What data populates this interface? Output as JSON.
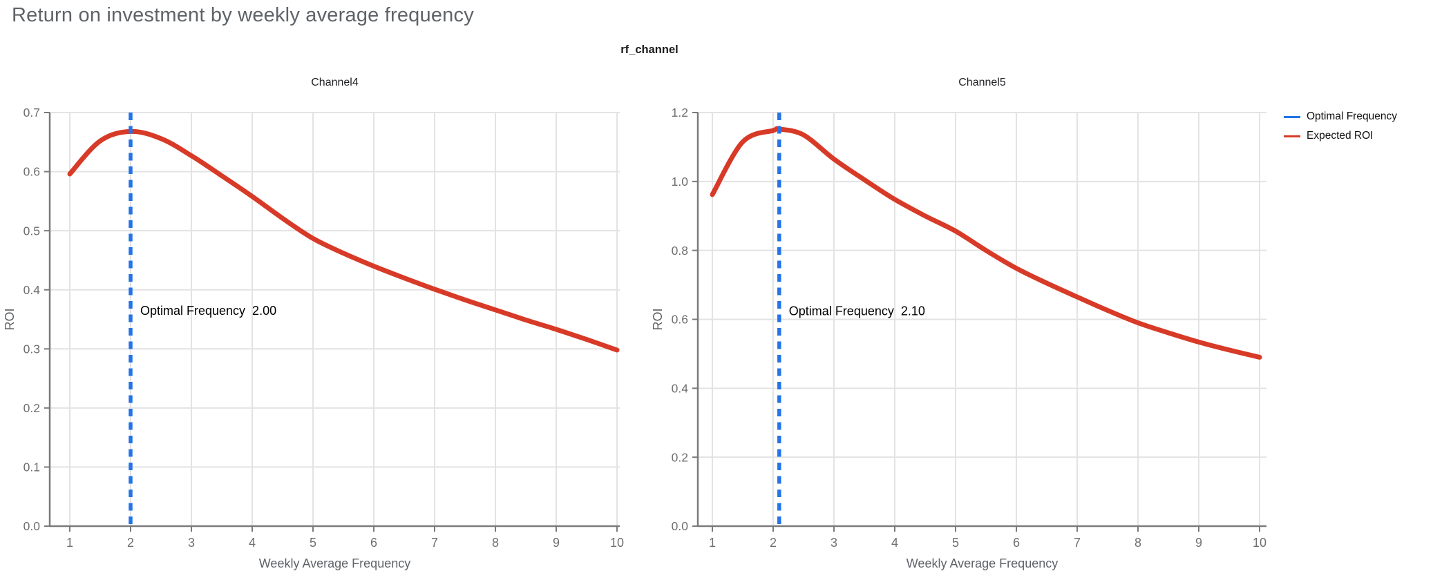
{
  "page_title": "Return on investment by weekly average frequency",
  "facet_title": "rf_channel",
  "legend": {
    "items": [
      {
        "label": "Optimal Frequency",
        "color": "#2374e8"
      },
      {
        "label": "Expected ROI",
        "color": "#d83a28"
      }
    ]
  },
  "colors": {
    "title": "#5f6368",
    "facet_title": "#1b1b1b",
    "chart_title": "#202124",
    "tick_label": "#6f6f6f",
    "axis_title": "#5f6368",
    "gridline": "#e3e3e3",
    "axis_line": "#7a7a7a",
    "optimal_frequency": "#2374e8",
    "expected_roi": "#d83a28",
    "annotation": "#000000"
  },
  "chart_data": [
    {
      "type": "line",
      "title": "Channel4",
      "xlabel": "Weekly Average Frequency",
      "ylabel": "ROI",
      "xlim": [
        1,
        10
      ],
      "ylim": [
        0,
        0.7
      ],
      "xticks": [
        "1",
        "2",
        "3",
        "4",
        "5",
        "6",
        "7",
        "8",
        "9",
        "10"
      ],
      "yticks": [
        "0.0",
        "0.1",
        "0.2",
        "0.3",
        "0.4",
        "0.5",
        "0.6",
        "0.7"
      ],
      "grid": true,
      "legend_position": "right",
      "optimal_frequency": 2.0,
      "annotation": {
        "label": "Optimal Frequency",
        "value": "2.00",
        "roi_position": 0.365
      },
      "series": [
        {
          "name": "Expected ROI",
          "x": [
            1,
            1.5,
            2,
            2.5,
            3,
            3.5,
            4,
            4.5,
            5,
            5.5,
            6,
            6.5,
            7,
            7.5,
            8,
            8.5,
            9,
            9.5,
            10
          ],
          "y": [
            0.596,
            0.652,
            0.668,
            0.656,
            0.627,
            0.593,
            0.558,
            0.521,
            0.487,
            0.462,
            0.44,
            0.42,
            0.401,
            0.383,
            0.366,
            0.349,
            0.333,
            0.316,
            0.298
          ]
        }
      ]
    },
    {
      "type": "line",
      "title": "Channel5",
      "xlabel": "Weekly Average Frequency",
      "ylabel": "ROI",
      "xlim": [
        1,
        10
      ],
      "ylim": [
        0,
        1.2
      ],
      "xticks": [
        "1",
        "2",
        "3",
        "4",
        "5",
        "6",
        "7",
        "8",
        "9",
        "10"
      ],
      "yticks": [
        "0.0",
        "0.2",
        "0.4",
        "0.6",
        "0.8",
        "1.0",
        "1.2"
      ],
      "grid": true,
      "legend_position": "right",
      "optimal_frequency": 2.1,
      "annotation": {
        "label": "Optimal Frequency",
        "value": "2.10",
        "roi_position": 0.625
      },
      "series": [
        {
          "name": "Expected ROI",
          "x": [
            1,
            1.5,
            2,
            2.1,
            2.5,
            3,
            3.5,
            4,
            4.5,
            5,
            5.5,
            6,
            6.5,
            7,
            7.5,
            8,
            8.5,
            9,
            9.5,
            10
          ],
          "y": [
            0.962,
            1.115,
            1.148,
            1.152,
            1.135,
            1.065,
            1.005,
            0.948,
            0.9,
            0.856,
            0.8,
            0.748,
            0.705,
            0.665,
            0.626,
            0.59,
            0.561,
            0.534,
            0.511,
            0.49
          ]
        }
      ]
    }
  ]
}
